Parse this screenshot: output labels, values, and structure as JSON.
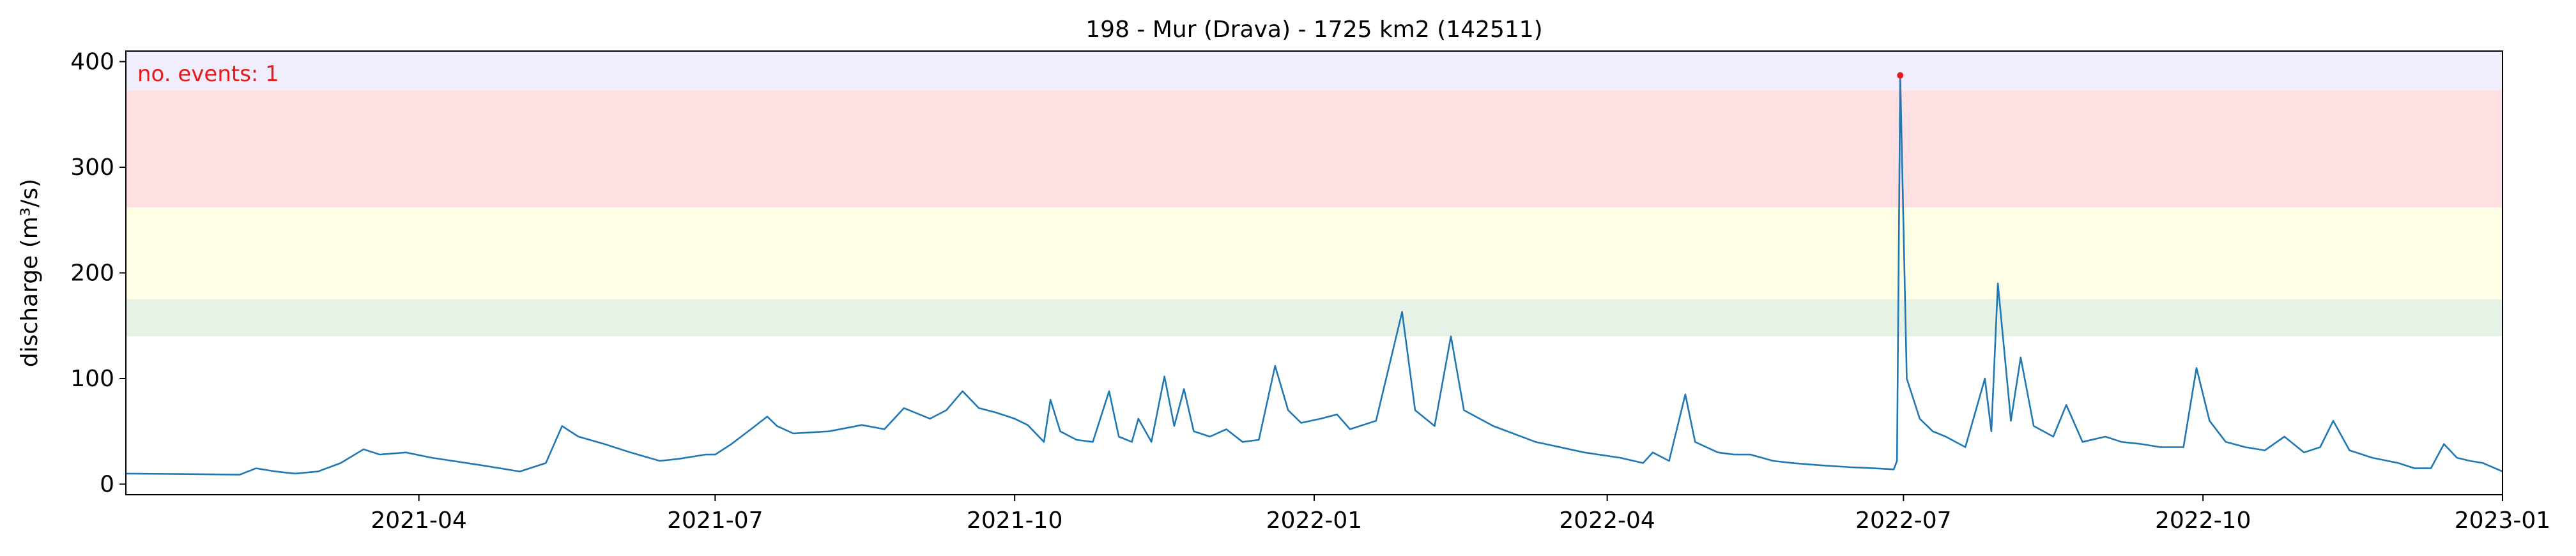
{
  "chart_data": {
    "type": "line",
    "title": "198 - Mur (Drava) - 1725 km2 (142511)",
    "xlabel": "",
    "ylabel": "discharge (m³/s)",
    "xlim": [
      "2021-01-01",
      "2023-01-01"
    ],
    "ylim": [
      -10,
      410
    ],
    "grid": false,
    "x_ticks": [
      "2021-04-01",
      "2021-07-01",
      "2021-10-01",
      "2022-01-01",
      "2022-04-01",
      "2022-07-01",
      "2022-10-01",
      "2023-01-01"
    ],
    "x_tick_labels": [
      "2021-04",
      "2021-07",
      "2021-10",
      "2022-01",
      "2022-04",
      "2022-07",
      "2022-10",
      "2023-01"
    ],
    "y_ticks": [
      0,
      100,
      200,
      300,
      400
    ],
    "y_tick_labels": [
      "0",
      "100",
      "200",
      "300",
      "400"
    ],
    "annotation": "no. events: 1",
    "threshold_bands": [
      {
        "from": 140,
        "to": 175,
        "color": "#e5f2e5"
      },
      {
        "from": 175,
        "to": 262,
        "color": "#ffffe5"
      },
      {
        "from": 262,
        "to": 373,
        "color": "#ffe0e3"
      },
      {
        "from": 373,
        "to": 410,
        "color": "#f0eefc"
      }
    ],
    "series": [
      {
        "color": "#1f77b4",
        "points": [
          [
            "2021-01-01",
            10
          ],
          [
            "2021-01-20",
            9.5
          ],
          [
            "2021-02-05",
            9
          ],
          [
            "2021-02-10",
            15
          ],
          [
            "2021-02-16",
            12
          ],
          [
            "2021-02-22",
            10
          ],
          [
            "2021-03-01",
            12
          ],
          [
            "2021-03-08",
            20
          ],
          [
            "2021-03-15",
            33
          ],
          [
            "2021-03-20",
            28
          ],
          [
            "2021-03-28",
            30
          ],
          [
            "2021-04-05",
            25
          ],
          [
            "2021-04-20",
            18
          ],
          [
            "2021-05-02",
            12
          ],
          [
            "2021-05-10",
            20
          ],
          [
            "2021-05-15",
            55
          ],
          [
            "2021-05-20",
            45
          ],
          [
            "2021-05-28",
            38
          ],
          [
            "2021-06-05",
            30
          ],
          [
            "2021-06-14",
            22
          ],
          [
            "2021-06-20",
            24
          ],
          [
            "2021-06-28",
            28
          ],
          [
            "2021-07-01",
            28
          ],
          [
            "2021-07-06",
            38
          ],
          [
            "2021-07-12",
            52
          ],
          [
            "2021-07-17",
            64
          ],
          [
            "2021-07-20",
            55
          ],
          [
            "2021-07-25",
            48
          ],
          [
            "2021-08-05",
            50
          ],
          [
            "2021-08-15",
            56
          ],
          [
            "2021-08-22",
            52
          ],
          [
            "2021-08-28",
            72
          ],
          [
            "2021-09-05",
            62
          ],
          [
            "2021-09-10",
            70
          ],
          [
            "2021-09-15",
            88
          ],
          [
            "2021-09-20",
            72
          ],
          [
            "2021-09-25",
            68
          ],
          [
            "2021-10-01",
            62
          ],
          [
            "2021-10-05",
            56
          ],
          [
            "2021-10-10",
            40
          ],
          [
            "2021-10-12",
            80
          ],
          [
            "2021-10-15",
            50
          ],
          [
            "2021-10-20",
            42
          ],
          [
            "2021-10-25",
            40
          ],
          [
            "2021-10-30",
            88
          ],
          [
            "2021-11-02",
            45
          ],
          [
            "2021-11-06",
            40
          ],
          [
            "2021-11-08",
            62
          ],
          [
            "2021-11-12",
            40
          ],
          [
            "2021-11-16",
            102
          ],
          [
            "2021-11-19",
            55
          ],
          [
            "2021-11-22",
            90
          ],
          [
            "2021-11-25",
            50
          ],
          [
            "2021-11-30",
            45
          ],
          [
            "2021-12-05",
            52
          ],
          [
            "2021-12-10",
            40
          ],
          [
            "2021-12-15",
            42
          ],
          [
            "2021-12-20",
            112
          ],
          [
            "2021-12-24",
            70
          ],
          [
            "2021-12-28",
            58
          ],
          [
            "2022-01-03",
            62
          ],
          [
            "2022-01-08",
            66
          ],
          [
            "2022-01-12",
            52
          ],
          [
            "2022-01-20",
            60
          ],
          [
            "2022-01-28",
            163
          ],
          [
            "2022-02-01",
            70
          ],
          [
            "2022-02-07",
            55
          ],
          [
            "2022-02-12",
            140
          ],
          [
            "2022-02-16",
            70
          ],
          [
            "2022-02-25",
            55
          ],
          [
            "2022-03-10",
            40
          ],
          [
            "2022-03-25",
            30
          ],
          [
            "2022-04-05",
            25
          ],
          [
            "2022-04-12",
            20
          ],
          [
            "2022-04-15",
            30
          ],
          [
            "2022-04-20",
            22
          ],
          [
            "2022-04-25",
            85
          ],
          [
            "2022-04-28",
            40
          ],
          [
            "2022-05-05",
            30
          ],
          [
            "2022-05-10",
            28
          ],
          [
            "2022-05-15",
            28
          ],
          [
            "2022-05-22",
            22
          ],
          [
            "2022-05-28",
            20
          ],
          [
            "2022-06-05",
            18
          ],
          [
            "2022-06-15",
            16
          ],
          [
            "2022-06-22",
            15
          ],
          [
            "2022-06-28",
            14
          ],
          [
            "2022-06-29",
            22
          ],
          [
            "2022-06-30",
            387
          ],
          [
            "2022-07-02",
            100
          ],
          [
            "2022-07-06",
            62
          ],
          [
            "2022-07-10",
            50
          ],
          [
            "2022-07-14",
            45
          ],
          [
            "2022-07-20",
            35
          ],
          [
            "2022-07-26",
            100
          ],
          [
            "2022-07-28",
            50
          ],
          [
            "2022-07-30",
            190
          ],
          [
            "2022-08-03",
            60
          ],
          [
            "2022-08-06",
            120
          ],
          [
            "2022-08-10",
            55
          ],
          [
            "2022-08-16",
            45
          ],
          [
            "2022-08-20",
            75
          ],
          [
            "2022-08-25",
            40
          ],
          [
            "2022-09-01",
            45
          ],
          [
            "2022-09-06",
            40
          ],
          [
            "2022-09-12",
            38
          ],
          [
            "2022-09-18",
            35
          ],
          [
            "2022-09-25",
            35
          ],
          [
            "2022-09-29",
            110
          ],
          [
            "2022-10-03",
            60
          ],
          [
            "2022-10-08",
            40
          ],
          [
            "2022-10-14",
            35
          ],
          [
            "2022-10-20",
            32
          ],
          [
            "2022-10-26",
            45
          ],
          [
            "2022-11-01",
            30
          ],
          [
            "2022-11-06",
            35
          ],
          [
            "2022-11-10",
            60
          ],
          [
            "2022-11-15",
            32
          ],
          [
            "2022-11-22",
            25
          ],
          [
            "2022-11-30",
            20
          ],
          [
            "2022-12-05",
            15
          ],
          [
            "2022-12-10",
            15
          ],
          [
            "2022-12-14",
            38
          ],
          [
            "2022-12-18",
            25
          ],
          [
            "2022-12-22",
            22
          ],
          [
            "2022-12-26",
            20
          ],
          [
            "2023-01-01",
            12
          ]
        ]
      }
    ],
    "event_markers": [
      {
        "x": "2022-06-30",
        "y": 387,
        "color": "#e41a1c"
      }
    ]
  }
}
